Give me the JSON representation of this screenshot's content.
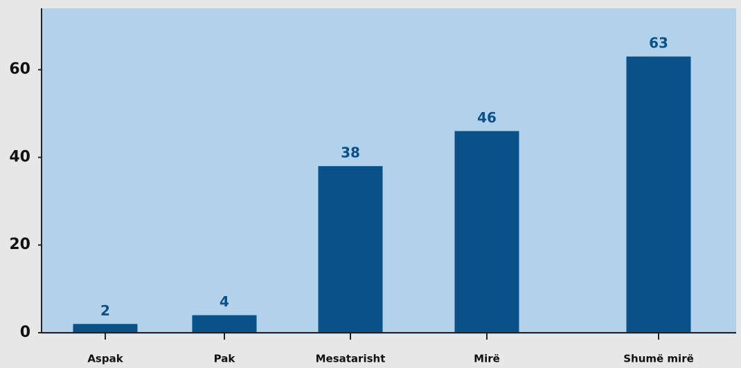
{
  "chart_data": {
    "type": "bar",
    "categories": [
      "Aspak",
      "Pak",
      "Mesatarisht",
      "Mirë",
      "Shumë mirë"
    ],
    "values": [
      2,
      4,
      38,
      46,
      63
    ],
    "color": "#0a518a",
    "ylim": [
      0,
      74
    ],
    "yticks": [
      0,
      20,
      40,
      60
    ],
    "grid": false
  }
}
